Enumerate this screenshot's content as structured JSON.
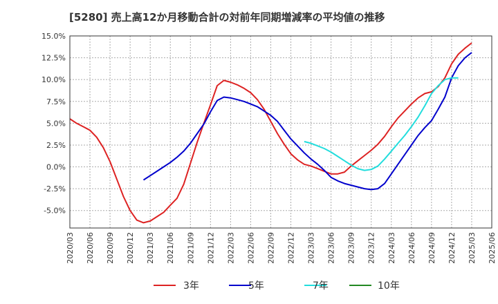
{
  "chart_data": {
    "type": "line",
    "title": "[5280]  売上高12か月移動合計の対前年同期増減率の平均値の推移",
    "xlabel": "",
    "ylabel": "",
    "y_ticks": [
      "15.0%",
      "12.5%",
      "10.0%",
      "7.5%",
      "5.0%",
      "2.5%",
      "0.0%",
      "-2.5%",
      "-5.0%"
    ],
    "y_tick_values": [
      15.0,
      12.5,
      10.0,
      7.5,
      5.0,
      2.5,
      0.0,
      -2.5,
      -5.0
    ],
    "ylim": [
      -7.0,
      15.0
    ],
    "xlim": [
      "2020-03",
      "2025-06"
    ],
    "x_ticks": [
      "2020/03",
      "2020/06",
      "2020/09",
      "2020/12",
      "2021/03",
      "2021/06",
      "2021/09",
      "2021/12",
      "2022/03",
      "2022/06",
      "2022/09",
      "2022/12",
      "2023/03",
      "2023/06",
      "2023/09",
      "2023/12",
      "2024/03",
      "2024/06",
      "2024/09",
      "2024/12",
      "2025/03",
      "2025/06"
    ],
    "grid": true,
    "legend_position": "bottom",
    "series": [
      {
        "name": "3年",
        "color": "#dd2222",
        "start": "2020-03",
        "values": [
          5.5,
          5.0,
          4.6,
          4.2,
          3.4,
          2.2,
          0.6,
          -1.4,
          -3.4,
          -5.0,
          -6.1,
          -6.4,
          -6.2,
          -5.7,
          -5.2,
          -4.4,
          -3.6,
          -2.0,
          0.4,
          2.8,
          5.0,
          7.1,
          9.3,
          9.9,
          9.7,
          9.4,
          9.0,
          8.5,
          7.7,
          6.6,
          5.2,
          3.8,
          2.6,
          1.5,
          0.8,
          0.3,
          0.1,
          -0.2,
          -0.5,
          -0.8,
          -0.8,
          -0.6,
          0.1,
          0.7,
          1.3,
          1.9,
          2.6,
          3.5,
          4.6,
          5.6,
          6.4,
          7.2,
          7.9,
          8.4,
          8.6,
          9.2,
          10.2,
          11.8,
          12.9,
          13.6,
          14.2
        ]
      },
      {
        "name": "5年",
        "color": "#0000cc",
        "start": "2021-02",
        "values": [
          -1.5,
          -1.0,
          -0.5,
          0.0,
          0.5,
          1.1,
          1.8,
          2.7,
          3.8,
          4.9,
          6.3,
          7.6,
          8.0,
          7.9,
          7.7,
          7.5,
          7.2,
          6.9,
          6.4,
          5.9,
          5.2,
          4.2,
          3.2,
          2.4,
          1.6,
          0.9,
          0.3,
          -0.4,
          -1.2,
          -1.6,
          -1.9,
          -2.1,
          -2.3,
          -2.5,
          -2.6,
          -2.5,
          -1.9,
          -0.8,
          0.3,
          1.4,
          2.5,
          3.6,
          4.5,
          5.3,
          6.6,
          8.0,
          10.2,
          11.6,
          12.5,
          13.1
        ]
      },
      {
        "name": "7年",
        "color": "#22dddd",
        "start": "2023-02",
        "values": [
          2.9,
          2.7,
          2.4,
          2.1,
          1.7,
          1.2,
          0.7,
          0.2,
          -0.2,
          -0.4,
          -0.3,
          0.1,
          0.9,
          1.8,
          2.7,
          3.6,
          4.6,
          5.7,
          7.0,
          8.4,
          9.3,
          10.0,
          10.2,
          10.2
        ]
      },
      {
        "name": "10年",
        "color": "#228822",
        "start": "2025-03",
        "values": []
      }
    ]
  }
}
